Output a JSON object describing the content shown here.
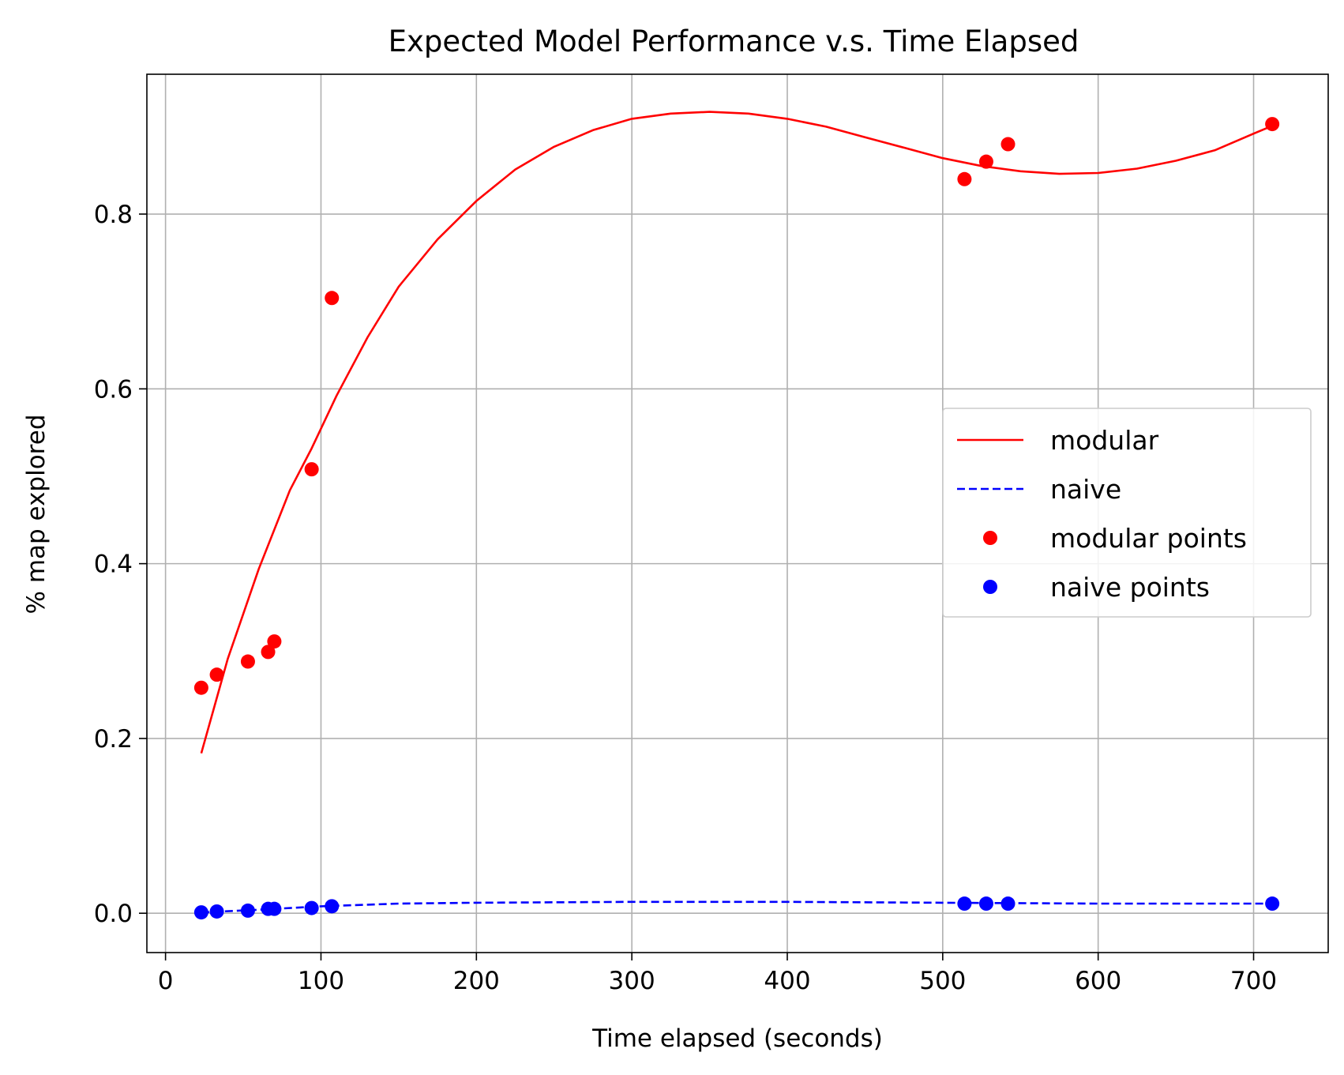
{
  "chart_data": {
    "type": "line",
    "title": "Expected Model Performance v.s. Time Elapsed",
    "xlabel": "Time elapsed (seconds)",
    "ylabel": "% map explored",
    "xlim": [
      -12,
      748
    ],
    "ylim": [
      -0.045,
      0.96
    ],
    "xticks": [
      0,
      100,
      200,
      300,
      400,
      500,
      600,
      700
    ],
    "yticks": [
      0.0,
      0.2,
      0.4,
      0.6,
      0.8
    ],
    "ytick_labels": [
      "0.0",
      "0.2",
      "0.4",
      "0.6",
      "0.8"
    ],
    "grid": true,
    "legend_placement": "center-right",
    "series": [
      {
        "name": "modular",
        "style": "solid-line",
        "color": "#ff0000",
        "x": [
          23,
          40,
          60,
          80,
          94,
          110,
          130,
          150,
          175,
          200,
          225,
          250,
          275,
          300,
          325,
          350,
          375,
          400,
          425,
          450,
          475,
          500,
          525,
          550,
          575,
          600,
          625,
          650,
          675,
          700,
          712
        ],
        "y": [
          0.183,
          0.291,
          0.394,
          0.484,
          0.532,
          0.592,
          0.659,
          0.717,
          0.771,
          0.815,
          0.851,
          0.877,
          0.896,
          0.909,
          0.915,
          0.917,
          0.915,
          0.909,
          0.9,
          0.888,
          0.876,
          0.864,
          0.855,
          0.849,
          0.846,
          0.847,
          0.852,
          0.861,
          0.873,
          0.892,
          0.901
        ]
      },
      {
        "name": "naive",
        "style": "dashed-line",
        "color": "#0000ff",
        "x": [
          23,
          60,
          100,
          150,
          200,
          300,
          400,
          500,
          600,
          712
        ],
        "y": [
          0.001,
          0.004,
          0.008,
          0.011,
          0.012,
          0.013,
          0.013,
          0.012,
          0.011,
          0.011
        ]
      },
      {
        "name": "modular points",
        "style": "markers",
        "color": "#ff0000",
        "x": [
          23,
          33,
          53,
          66,
          70,
          94,
          107,
          514,
          528,
          542,
          712
        ],
        "y": [
          0.258,
          0.273,
          0.288,
          0.299,
          0.311,
          0.508,
          0.704,
          0.84,
          0.86,
          0.88,
          0.903
        ]
      },
      {
        "name": "naive points",
        "style": "markers",
        "color": "#0000ff",
        "x": [
          23,
          33,
          53,
          66,
          70,
          94,
          107,
          514,
          528,
          542,
          712
        ],
        "y": [
          0.001,
          0.002,
          0.003,
          0.005,
          0.005,
          0.006,
          0.008,
          0.011,
          0.011,
          0.011,
          0.011
        ]
      }
    ]
  }
}
